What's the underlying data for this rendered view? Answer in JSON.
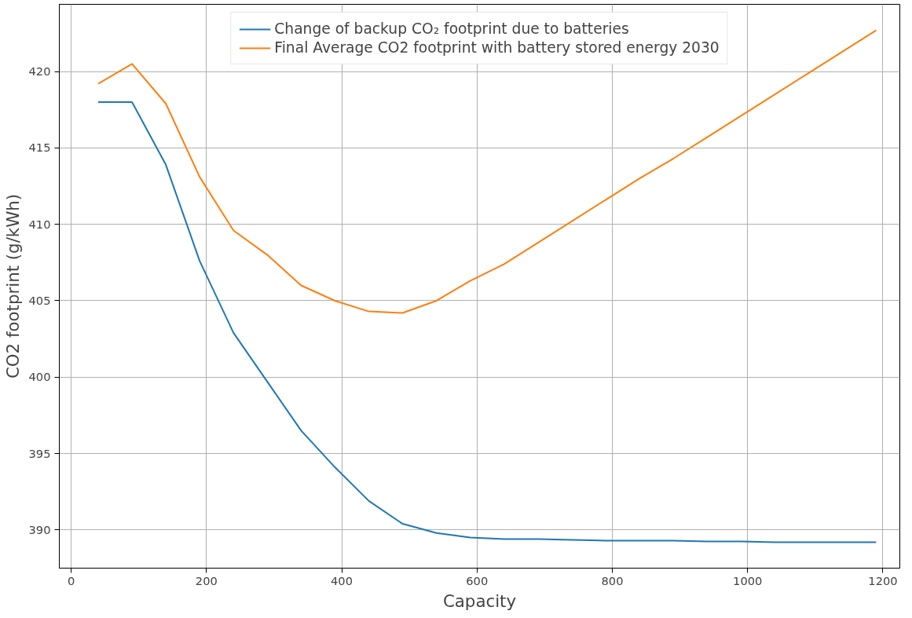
{
  "chart_data": {
    "type": "line",
    "xlabel": "Capacity",
    "ylabel": "CO2 footprint (g/kWh)",
    "x": [
      40,
      90,
      140,
      190,
      240,
      290,
      340,
      390,
      440,
      490,
      540,
      590,
      640,
      690,
      740,
      790,
      840,
      890,
      940,
      990,
      1040,
      1090,
      1140,
      1190
    ],
    "series": [
      {
        "name": "Change of backup CO₂ footprint due to batteries",
        "color": "#1f77b4",
        "values": [
          418.0,
          418.0,
          413.9,
          407.6,
          402.9,
          399.7,
          396.5,
          394.1,
          391.9,
          390.4,
          389.8,
          389.5,
          389.4,
          389.4,
          389.35,
          389.3,
          389.3,
          389.3,
          389.25,
          389.25,
          389.2,
          389.2,
          389.2,
          389.2
        ]
      },
      {
        "name": "Final Average CO2 footprint with battery stored energy 2030",
        "color": "#ff7f0e",
        "values": [
          419.2,
          420.5,
          417.9,
          413.1,
          409.6,
          408.0,
          406.0,
          405.0,
          404.3,
          404.2,
          405.0,
          406.3,
          407.4,
          408.8,
          410.2,
          411.6,
          413.0,
          414.3,
          415.7,
          417.1,
          418.5,
          419.9,
          421.3,
          422.7
        ]
      }
    ],
    "xlim": [
      -17.5,
      1225
    ],
    "ylim": [
      387.5,
      424.4
    ],
    "xticks": [
      0,
      200,
      400,
      600,
      800,
      1000,
      1200
    ],
    "yticks": [
      390,
      395,
      400,
      405,
      410,
      415,
      420
    ],
    "grid": true,
    "legend": "top",
    "marker": "none",
    "line_style": "solid"
  }
}
